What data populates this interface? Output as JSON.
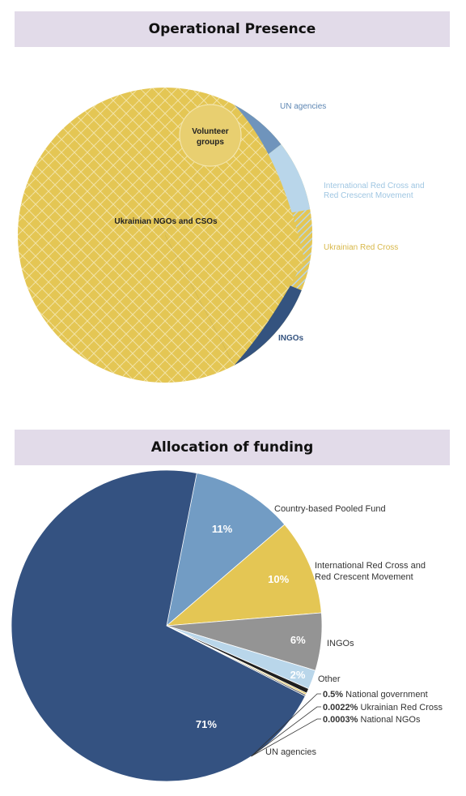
{
  "sections": {
    "presence_title": "Operational Presence",
    "funding_title": "Allocation of funding"
  },
  "chart_data": [
    {
      "type": "pie",
      "title": "Operational Presence",
      "slices": [
        {
          "label": "Ukrainian NGOs and CSOs",
          "color": "#e4c654"
        },
        {
          "label": "Volunteer groups",
          "color": "#e8cf70"
        },
        {
          "label": "UN agencies",
          "color": "#6f94bc"
        },
        {
          "label": "International Red Cross and Red Crescent Movement",
          "color": "#b9d6ea"
        },
        {
          "label": "Ukrainian Red Cross",
          "color": "#e4c654"
        },
        {
          "label": "INGOs",
          "color": "#34537f"
        }
      ]
    },
    {
      "type": "pie",
      "title": "Allocation of funding",
      "slices": [
        {
          "label": "UN agencies",
          "value": 71,
          "display": "71%",
          "color": "#345281"
        },
        {
          "label": "Country-based Pooled Fund",
          "value": 11,
          "display": "11%",
          "color": "#729cc4"
        },
        {
          "label": "International Red Cross and Red Crescent Movement",
          "value": 10,
          "display": "10%",
          "color": "#e4c654"
        },
        {
          "label": "INGOs",
          "value": 6,
          "display": "6%",
          "color": "#949494"
        },
        {
          "label": "Other",
          "value": 2,
          "display": "2%",
          "color": "#b9d6ea"
        },
        {
          "label": "National government",
          "value": 0.5,
          "display": "0.5%",
          "color": "#1f1f1f"
        },
        {
          "label": "Ukrainian Red Cross",
          "value": 0.0022,
          "display": "0.0022%",
          "color": "#e4c654"
        },
        {
          "label": "National NGOs",
          "value": 0.0003,
          "display": "0.0003%",
          "color": "#555555"
        }
      ]
    }
  ]
}
